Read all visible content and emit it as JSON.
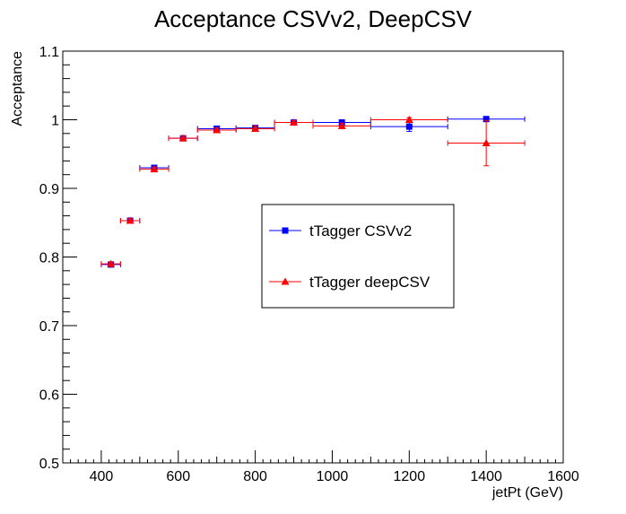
{
  "chart_data": {
    "type": "scatter",
    "title": "Acceptance CSVv2, DeepCSV",
    "xlabel": "jetPt (GeV)",
    "ylabel": "Acceptance",
    "xlim": [
      300,
      1600
    ],
    "ylim": [
      0.5,
      1.1
    ],
    "x_ticks": [
      400,
      600,
      800,
      1000,
      1200,
      1400,
      1600
    ],
    "y_ticks": [
      0.5,
      0.6,
      0.7,
      0.8,
      0.9,
      1,
      1.1
    ],
    "grid": false,
    "legend_position": "center-right",
    "series": [
      {
        "name": "tTagger CSVv2",
        "color": "#0000ff",
        "marker": "square",
        "points": [
          {
            "x": 425,
            "xerr": 25,
            "y": 0.789,
            "yerr": 0.003
          },
          {
            "x": 475,
            "xerr": 25,
            "y": 0.853,
            "yerr": 0.003
          },
          {
            "x": 537.5,
            "xerr": 37.5,
            "y": 0.93,
            "yerr": 0.003
          },
          {
            "x": 612.5,
            "xerr": 37.5,
            "y": 0.973,
            "yerr": 0.003
          },
          {
            "x": 700,
            "xerr": 50,
            "y": 0.987,
            "yerr": 0.003
          },
          {
            "x": 800,
            "xerr": 50,
            "y": 0.988,
            "yerr": 0.003
          },
          {
            "x": 900,
            "xerr": 50,
            "y": 0.996,
            "yerr": 0.003
          },
          {
            "x": 1025,
            "xerr": 75,
            "y": 0.996,
            "yerr": 0.004
          },
          {
            "x": 1200,
            "xerr": 100,
            "y": 0.99,
            "yerr": 0.007
          },
          {
            "x": 1400,
            "xerr": 100,
            "y": 1.001,
            "yerr": 0.002
          }
        ]
      },
      {
        "name": "tTagger deepCSV",
        "color": "#ff0000",
        "marker": "triangle",
        "points": [
          {
            "x": 425,
            "xerr": 25,
            "y": 0.79,
            "yerr": 0.003
          },
          {
            "x": 475,
            "xerr": 25,
            "y": 0.853,
            "yerr": 0.003
          },
          {
            "x": 537.5,
            "xerr": 37.5,
            "y": 0.928,
            "yerr": 0.003
          },
          {
            "x": 612.5,
            "xerr": 37.5,
            "y": 0.973,
            "yerr": 0.003
          },
          {
            "x": 700,
            "xerr": 50,
            "y": 0.985,
            "yerr": 0.003
          },
          {
            "x": 800,
            "xerr": 50,
            "y": 0.987,
            "yerr": 0.003
          },
          {
            "x": 900,
            "xerr": 50,
            "y": 0.996,
            "yerr": 0.003
          },
          {
            "x": 1025,
            "xerr": 75,
            "y": 0.991,
            "yerr": 0.004
          },
          {
            "x": 1200,
            "xerr": 100,
            "y": 1.0,
            "yerr": 0.003
          },
          {
            "x": 1400,
            "xerr": 100,
            "y": 0.966,
            "yerr": 0.033
          }
        ]
      }
    ]
  }
}
